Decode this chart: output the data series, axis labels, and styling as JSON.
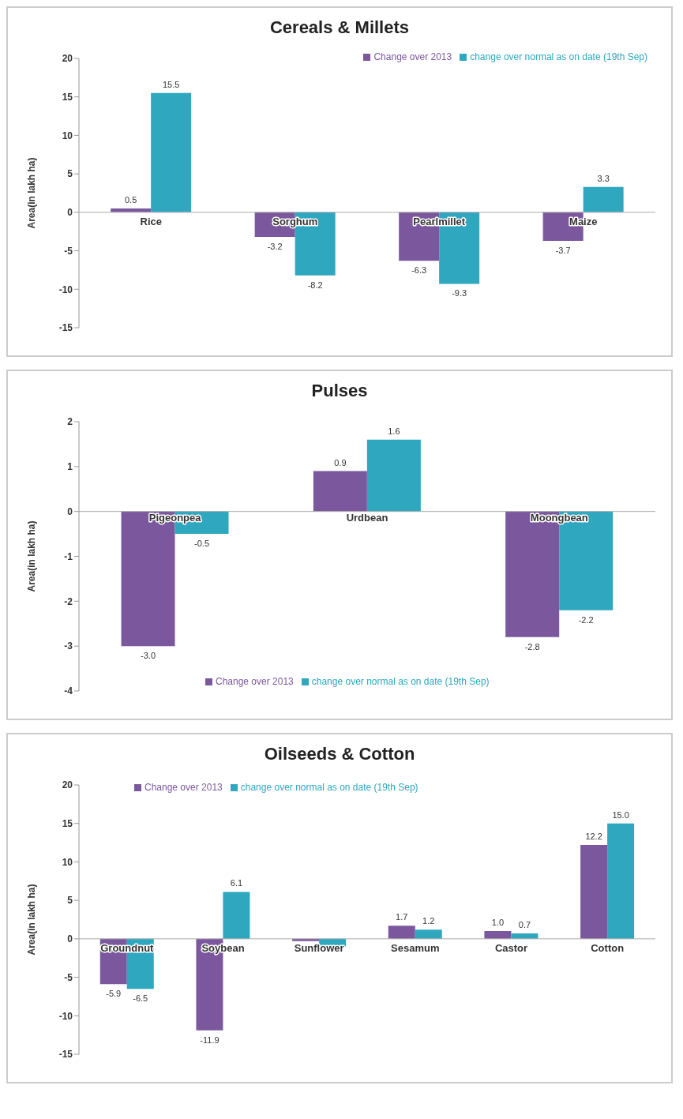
{
  "chart_data": [
    {
      "type": "bar",
      "title": "Cereals & Millets",
      "ylabel": "Area(in lakh ha)",
      "categories": [
        "Rice",
        "Sorghum",
        "Pearlmillet",
        "Maize"
      ],
      "series": [
        {
          "name": "Change over 2013",
          "color": "#7b579e",
          "values": [
            0.5,
            -3.2,
            -6.3,
            -3.7
          ],
          "value_labels": [
            "0.5",
            "-3.2",
            "-6.3",
            "-3.7"
          ]
        },
        {
          "name": "change over normal as on date (19th Sep)",
          "color": "#2ea7bf",
          "values": [
            15.5,
            -8.2,
            -9.3,
            3.3
          ],
          "value_labels": [
            "15.5",
            "-8.2",
            "-9.3",
            "3.3"
          ]
        }
      ],
      "ylim": [
        -15,
        20
      ],
      "yticks": [
        -15,
        -10,
        -5,
        0,
        5,
        10,
        15,
        20
      ],
      "grid": false,
      "legend": "top right"
    },
    {
      "type": "bar",
      "title": "Pulses",
      "ylabel": "Area(in lakh ha)",
      "categories": [
        "Pigeonpea",
        "Urdbean",
        "Moongbean"
      ],
      "series": [
        {
          "name": "Change over 2013",
          "color": "#7b579e",
          "values": [
            -3.0,
            0.9,
            -2.8
          ],
          "value_labels": [
            "-3.0",
            "0.9",
            "-2.8"
          ]
        },
        {
          "name": "change over normal as on date (19th Sep)",
          "color": "#2ea7bf",
          "values": [
            -0.5,
            1.6,
            -2.2
          ],
          "value_labels": [
            "-0.5",
            "1.6",
            "-2.2"
          ]
        }
      ],
      "ylim": [
        -4,
        2
      ],
      "yticks": [
        -4,
        -3,
        -2,
        -1,
        0,
        1,
        2
      ],
      "grid": false,
      "legend": "bottom"
    },
    {
      "type": "bar",
      "title": "Oilseeds & Cotton",
      "ylabel": "Area(in lakh ha)",
      "categories": [
        "Groundnut",
        "Soybean",
        "Sunflower",
        "Sesamum",
        "Castor",
        "Cotton"
      ],
      "series": [
        {
          "name": "Change over 2013",
          "color": "#7b579e",
          "values": [
            -5.9,
            -11.9,
            -0.3,
            1.7,
            1.0,
            12.2
          ],
          "value_labels": [
            "-5.9",
            "-11.9",
            null,
            "1.7",
            "1.0",
            "12.2"
          ]
        },
        {
          "name": "change over normal as on date (19th Sep)",
          "color": "#2ea7bf",
          "values": [
            -6.5,
            6.1,
            -1.0,
            1.2,
            0.7,
            15.0
          ],
          "value_labels": [
            "-6.5",
            "6.1",
            null,
            "1.2",
            "0.7",
            "15.0"
          ]
        }
      ],
      "ylim": [
        -15,
        20
      ],
      "yticks": [
        -15,
        -10,
        -5,
        0,
        5,
        10,
        15,
        20
      ],
      "grid": false,
      "legend": "top"
    }
  ]
}
